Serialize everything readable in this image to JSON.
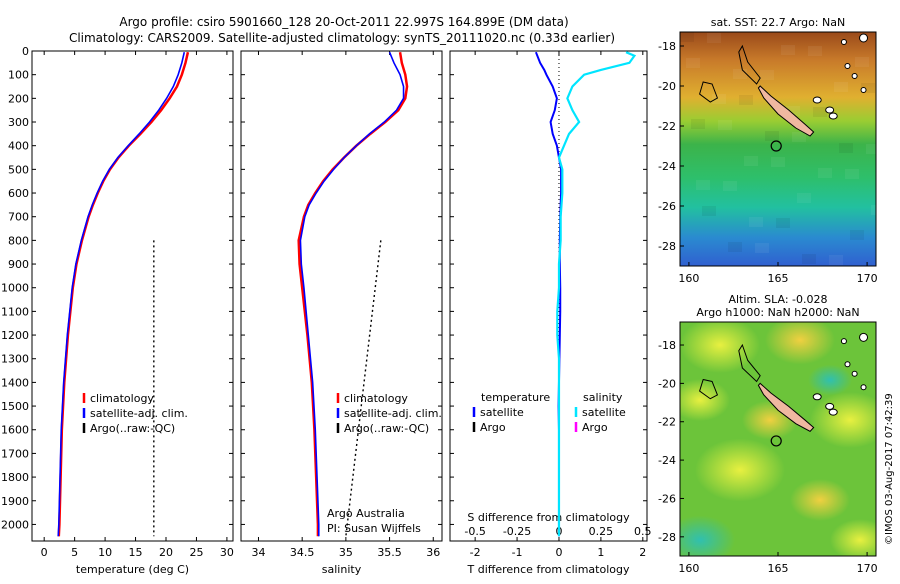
{
  "header": {
    "line1": "Argo profile: csiro 5901660_128 20-Oct-2011 22.997S 164.899E (DM data)",
    "line2": "Climatology: CARS2009. Satellite-adjusted climatology: synTS_20111020.nc (0.33d earlier)"
  },
  "credit": "©IMOS 03-Aug-2017 07:42:39",
  "colors": {
    "climatology": "#ff0000",
    "satellite": "#0000ff",
    "argo": "#000000",
    "salinity_satellite": "#00e5ff",
    "salinity_argo": "#ff00ff"
  },
  "chart_data": [
    {
      "type": "line",
      "id": "temperature",
      "xlabel": "temperature (deg C)",
      "ylabel": "",
      "xlim": [
        -2,
        31
      ],
      "ylim": [
        2070,
        0
      ],
      "xticks": [
        0,
        5,
        10,
        15,
        20,
        25,
        30
      ],
      "yticks": [
        0,
        100,
        200,
        300,
        400,
        500,
        600,
        700,
        800,
        900,
        1000,
        1100,
        1200,
        1300,
        1400,
        1500,
        1600,
        1700,
        1800,
        1900,
        2000
      ],
      "legend": [
        "climatology",
        "satellite-adj. clim.",
        "Argo(..raw:-QC)"
      ],
      "series": [
        {
          "name": "climatology",
          "depth": [
            5,
            50,
            100,
            150,
            200,
            250,
            300,
            350,
            400,
            450,
            500,
            550,
            600,
            650,
            700,
            800,
            900,
            1000,
            1200,
            1400,
            1600,
            1800,
            2000,
            2050
          ],
          "values": [
            23.6,
            23.2,
            22.6,
            21.8,
            20.6,
            19.2,
            17.6,
            15.8,
            13.9,
            12.2,
            10.8,
            9.7,
            8.8,
            8.0,
            7.3,
            6.2,
            5.3,
            4.7,
            3.9,
            3.3,
            2.9,
            2.7,
            2.5,
            2.4
          ]
        },
        {
          "name": "satellite-adj. clim.",
          "depth": [
            5,
            50,
            100,
            150,
            200,
            250,
            300,
            350,
            400,
            450,
            500,
            550,
            600,
            650,
            700,
            800,
            900,
            1000,
            1200,
            1400,
            1600,
            1800,
            2000,
            2050
          ],
          "values": [
            23.0,
            22.6,
            22.0,
            21.2,
            20.1,
            18.8,
            17.3,
            15.6,
            13.8,
            12.1,
            10.7,
            9.6,
            8.7,
            7.9,
            7.2,
            6.1,
            5.2,
            4.6,
            3.8,
            3.2,
            2.8,
            2.6,
            2.4,
            2.3
          ]
        },
        {
          "name": "Argo(..raw:-QC)",
          "depth": [
            800,
            2050
          ],
          "values": [
            18.0,
            18.0
          ]
        }
      ]
    },
    {
      "type": "line",
      "id": "salinity",
      "xlabel": "salinity",
      "xlim": [
        33.8,
        36.1
      ],
      "ylim": [
        2070,
        0
      ],
      "xticks": [
        34,
        34.5,
        35,
        35.5,
        36
      ],
      "legend": [
        "climatology",
        "satellite-adj. clim.",
        "Argo(..raw:-QC)"
      ],
      "annotation": [
        "Argo Australia",
        "PI: Susan Wijffels"
      ],
      "series": [
        {
          "name": "climatology",
          "depth": [
            5,
            50,
            100,
            150,
            200,
            250,
            300,
            350,
            400,
            450,
            500,
            550,
            600,
            650,
            700,
            800,
            900,
            1000,
            1200,
            1400,
            1600,
            1800,
            2000,
            2050
          ],
          "values": [
            35.62,
            35.64,
            35.68,
            35.7,
            35.68,
            35.6,
            35.45,
            35.28,
            35.12,
            34.98,
            34.85,
            34.74,
            34.65,
            34.57,
            34.52,
            34.46,
            34.47,
            34.5,
            34.56,
            34.61,
            34.64,
            34.66,
            34.68,
            34.68
          ]
        },
        {
          "name": "satellite-adj. clim.",
          "depth": [
            5,
            50,
            100,
            150,
            200,
            250,
            300,
            350,
            400,
            450,
            500,
            550,
            600,
            650,
            700,
            800,
            900,
            1000,
            1200,
            1400,
            1600,
            1800,
            2000,
            2050
          ],
          "values": [
            35.5,
            35.55,
            35.62,
            35.66,
            35.66,
            35.58,
            35.44,
            35.27,
            35.12,
            34.98,
            34.86,
            34.75,
            34.66,
            34.58,
            34.53,
            34.48,
            34.49,
            34.52,
            34.57,
            34.62,
            34.65,
            34.67,
            34.69,
            34.69
          ]
        },
        {
          "name": "Argo(..raw:-QC)",
          "depth": [
            800,
            2050
          ],
          "values": [
            35.4,
            35.0
          ]
        }
      ]
    },
    {
      "type": "line",
      "id": "difference",
      "xlabel": "T difference from climatology",
      "xlabel2": "S difference from climatology",
      "xlim": [
        -2.6,
        2.1
      ],
      "ylim": [
        2070,
        0
      ],
      "xticks": [
        -2,
        -1,
        0,
        1,
        2
      ],
      "xticks2": [
        "-0.5",
        "-0.25",
        "0",
        "0.25",
        "0.5"
      ],
      "legend_left_title": "temperature",
      "legend_right_title": "salinity",
      "legend_left": [
        "satellite",
        "Argo"
      ],
      "legend_right": [
        "satellite",
        "Argo"
      ],
      "series": [
        {
          "name": "temperature satellite",
          "depth": [
            5,
            50,
            80,
            100,
            150,
            200,
            250,
            300,
            350,
            400,
            450,
            500,
            600,
            700,
            800,
            900,
            1000,
            1100,
            1200,
            1300,
            1400,
            1500,
            1600,
            1800,
            2000,
            2050
          ],
          "values": [
            -0.55,
            -0.45,
            -0.35,
            -0.3,
            -0.15,
            -0.05,
            -0.1,
            -0.2,
            -0.15,
            -0.05,
            0,
            0.05,
            0.05,
            0.03,
            0.02,
            0.02,
            0.03,
            0.03,
            0.02,
            0.01,
            0.0,
            -0.01,
            0,
            0,
            0,
            0
          ]
        },
        {
          "name": "salinity satellite",
          "depth": [
            5,
            20,
            50,
            80,
            100,
            150,
            200,
            250,
            300,
            350,
            400,
            450,
            500,
            600,
            700,
            800,
            900,
            1000,
            1100,
            1200,
            1300,
            1400,
            1500,
            1600,
            1800,
            2000,
            2050
          ],
          "values": [
            0.4,
            0.45,
            0.42,
            0.25,
            0.15,
            0.08,
            0.05,
            0.08,
            0.12,
            0.06,
            0.03,
            0.0,
            0.02,
            0.02,
            0.01,
            0.01,
            0.0,
            0.0,
            -0.01,
            -0.01,
            0.0,
            0.0,
            0.0,
            0.0,
            0.0,
            0.0,
            0.0
          ]
        }
      ]
    },
    {
      "type": "heatmap",
      "id": "sst-map",
      "title": "sat. SST: 22.7 Argo: NaN",
      "xlim": [
        159.5,
        170.5
      ],
      "ylim": [
        -29,
        -17.3
      ],
      "xticks": [
        160,
        165,
        170
      ],
      "yticks": [
        -18,
        -20,
        -22,
        -24,
        -26,
        -28
      ],
      "marker": {
        "lon": 164.9,
        "lat": -23.0
      }
    },
    {
      "type": "heatmap",
      "id": "sla-map",
      "title": [
        "Altim. SLA: -0.028",
        "Argo h1000: NaN h2000: NaN"
      ],
      "xlim": [
        159.5,
        170.5
      ],
      "ylim": [
        -29,
        -16.8
      ],
      "xticks": [
        160,
        165,
        170
      ],
      "yticks": [
        -18,
        -20,
        -22,
        -24,
        -26,
        -28
      ],
      "marker": {
        "lon": 164.9,
        "lat": -23.0
      }
    }
  ]
}
